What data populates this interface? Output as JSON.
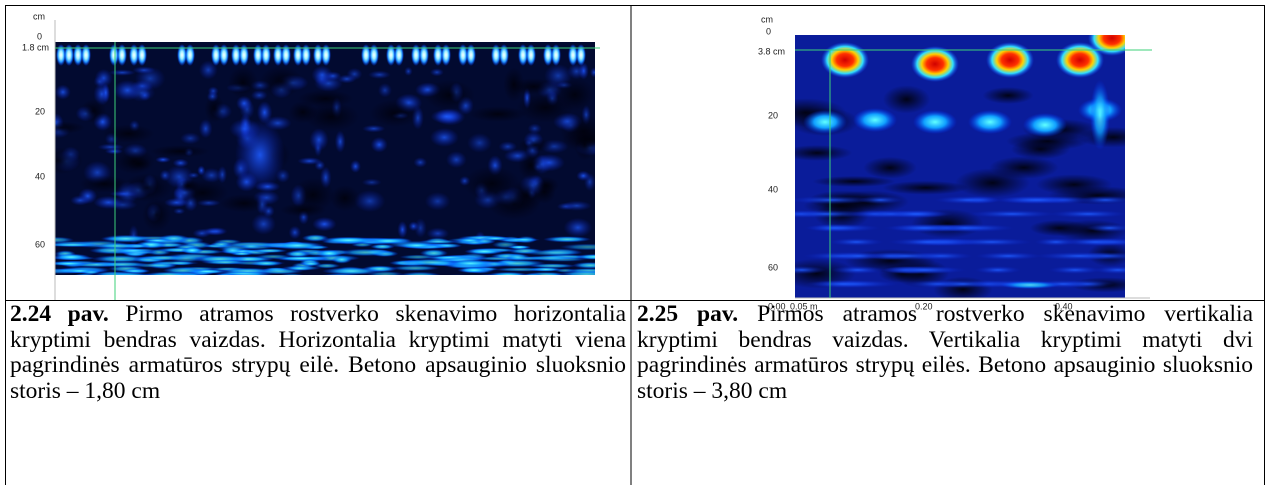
{
  "figures": [
    {
      "axis": {
        "unit": "cm",
        "top": "0",
        "cover": "1.8 cm",
        "ticks": [
          "20",
          "40",
          "60"
        ]
      },
      "caption": {
        "label": "2.24 pav.",
        "text": "Pirmo atramos rostverko skenavimo horizontalia kryptimi bendras vaizdas. Horizontalia kryptimi matyti viena pagrindinės armatūros strypų eilė. Betono apsauginio sluoksnio storis – 1,80 cm"
      }
    },
    {
      "axis": {
        "unit": "cm",
        "top": "0",
        "cover": "3.8 cm",
        "ticks": [
          "20",
          "40",
          "60"
        ],
        "x_ticks": [
          "0.00",
          "0.05 m",
          "0.20",
          "0.40"
        ]
      },
      "caption": {
        "label": "2.25 pav.",
        "text": "Pirmos atramos rostverko skenavimo vertikalia kryptimi bendras vaizdas. Vertikalia kryptimi matyti dvi pagrindinės armatūros strypų eilės. Betono apsauginio sluoksnio storis – 3,80 cm"
      }
    }
  ]
}
